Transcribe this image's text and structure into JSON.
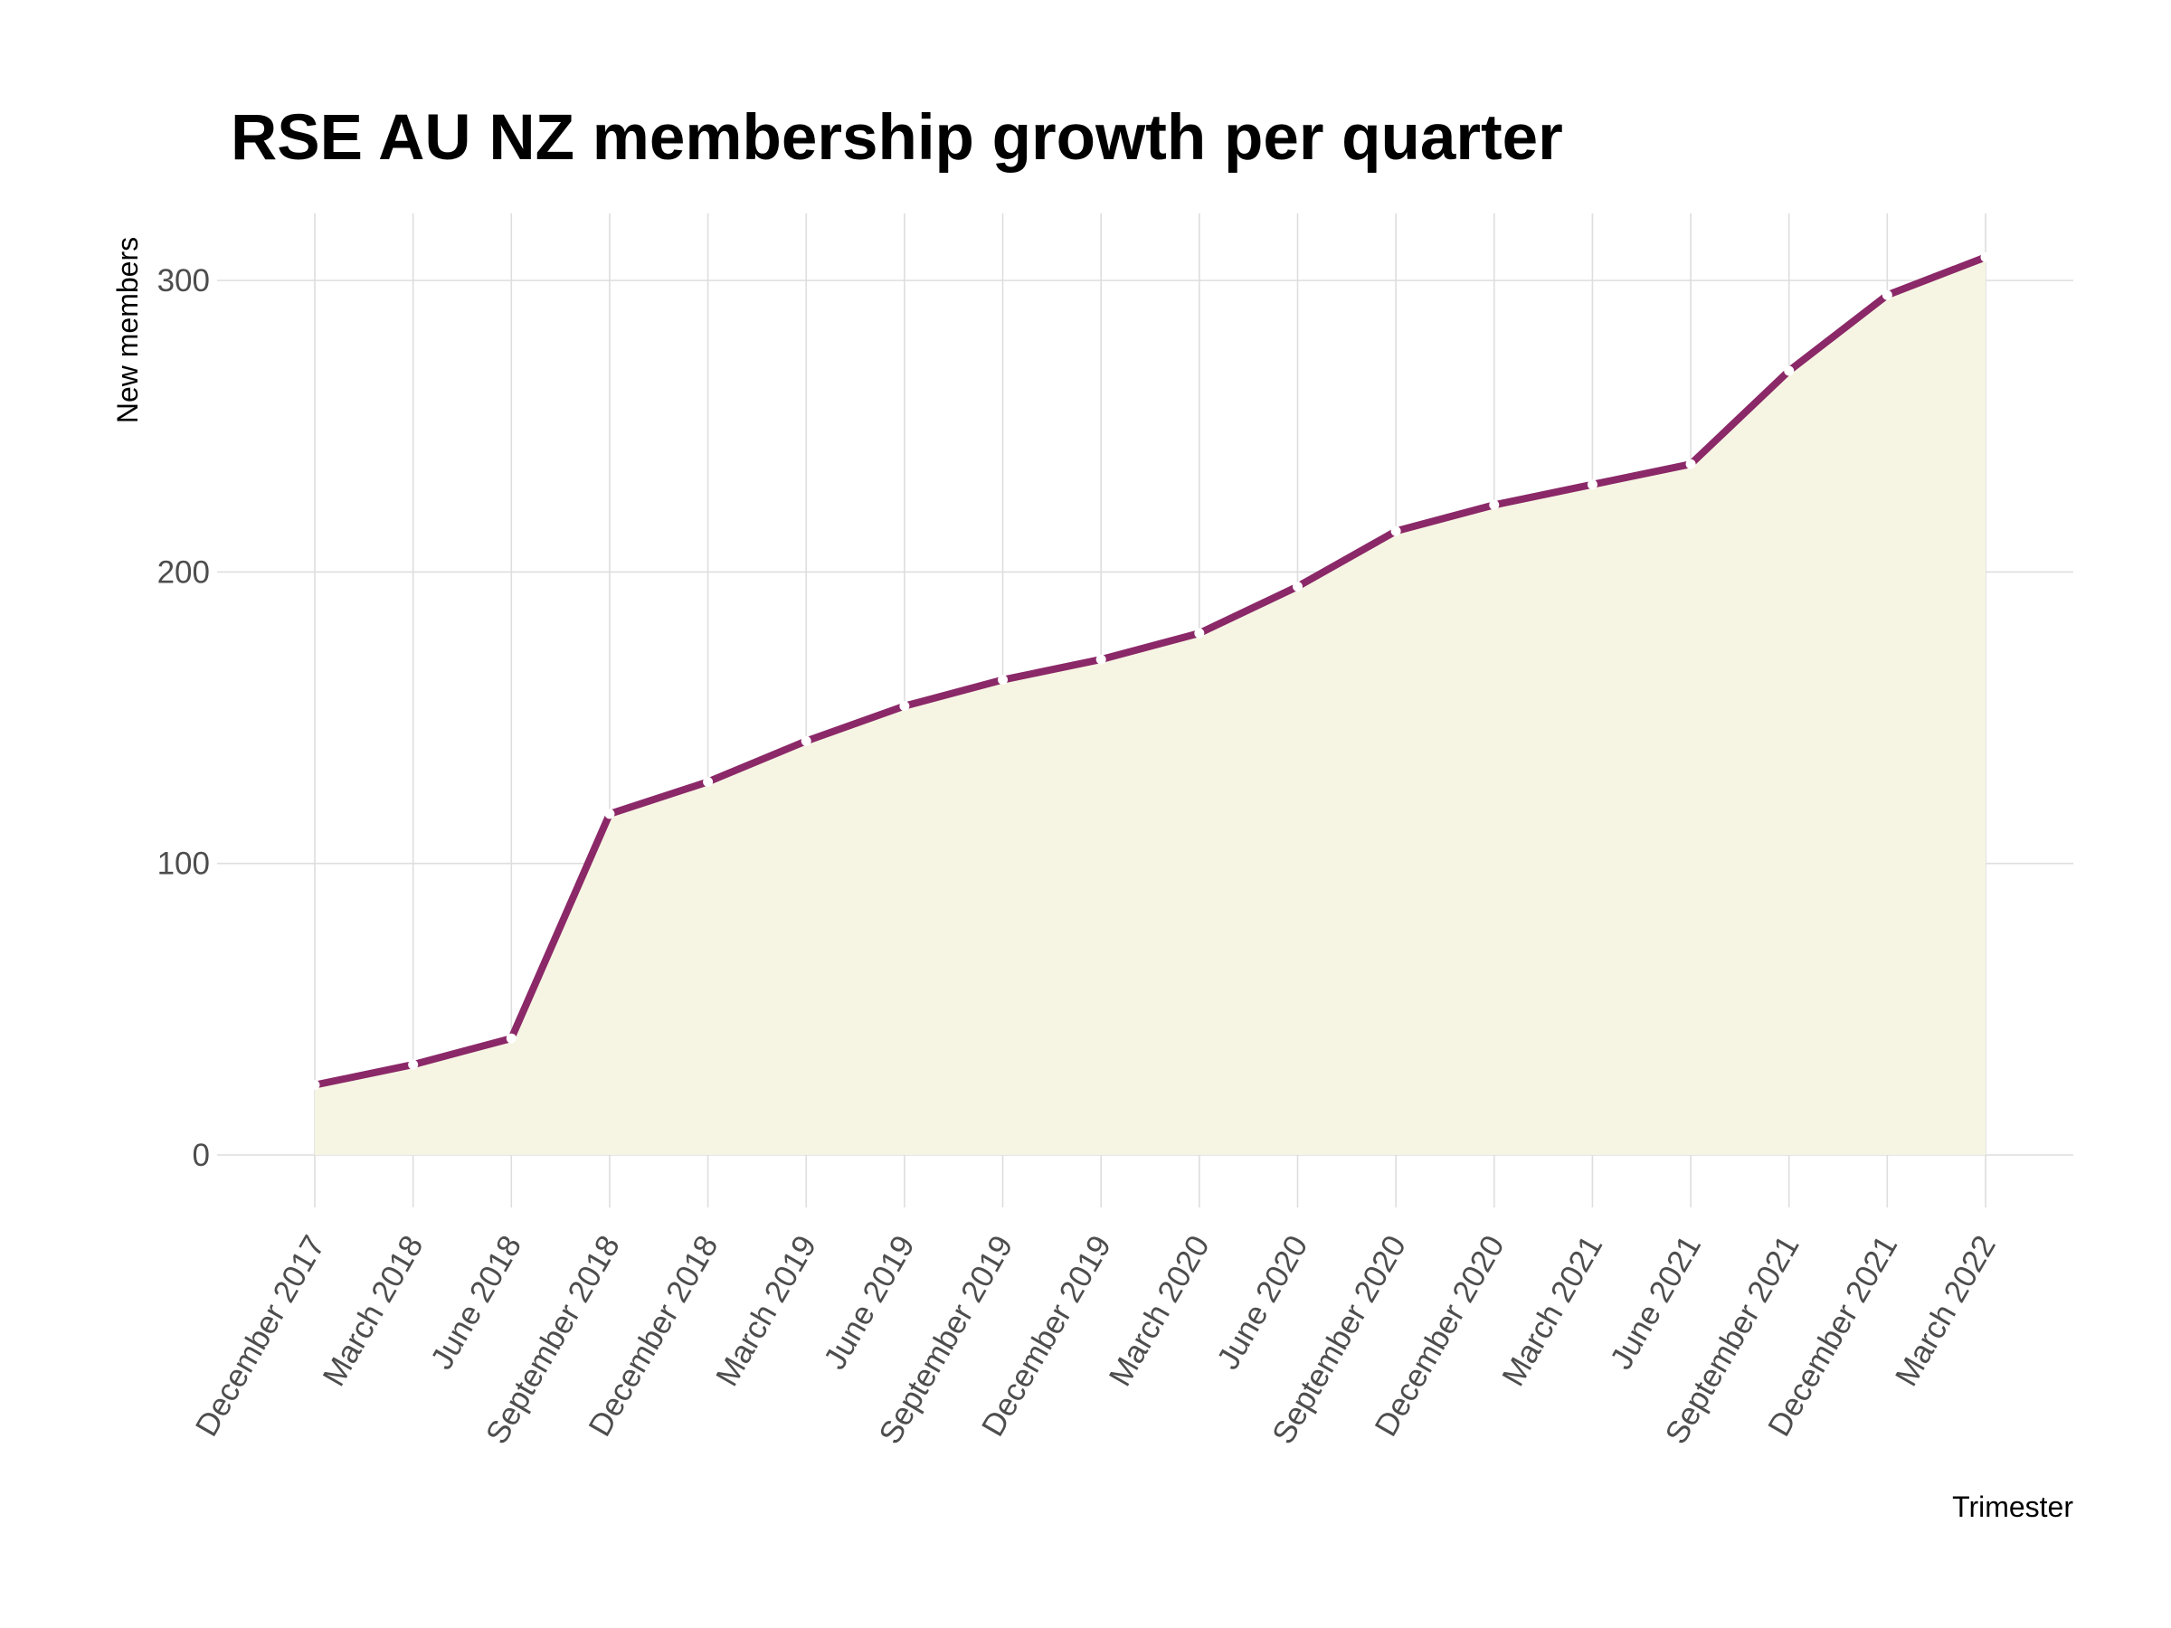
{
  "chart_data": {
    "type": "area",
    "title": "RSE AU NZ membership growth per quarter",
    "xlabel": "Trimester",
    "ylabel": "New members",
    "categories": [
      "December 2017",
      "March 2018",
      "June 2018",
      "September 2018",
      "December 2018",
      "March 2019",
      "June 2019",
      "September 2019",
      "December 2019",
      "March 2020",
      "June 2020",
      "September 2020",
      "December 2020",
      "March 2021",
      "June 2021",
      "September 2021",
      "December 2021",
      "March 2022"
    ],
    "series": [
      {
        "values": [
          24,
          31,
          40,
          117,
          128,
          142,
          154,
          163,
          170,
          179,
          195,
          214,
          223,
          230,
          237,
          269,
          295,
          308
        ]
      }
    ],
    "ylim": [
      -18,
      323
    ],
    "yticks": [
      0,
      100,
      200,
      300
    ],
    "grid": true,
    "legend": "none",
    "colors": {
      "line": "#8b2868",
      "fill": "#f6f5e3",
      "point": "#ffffff",
      "grid": "#dedede"
    }
  }
}
